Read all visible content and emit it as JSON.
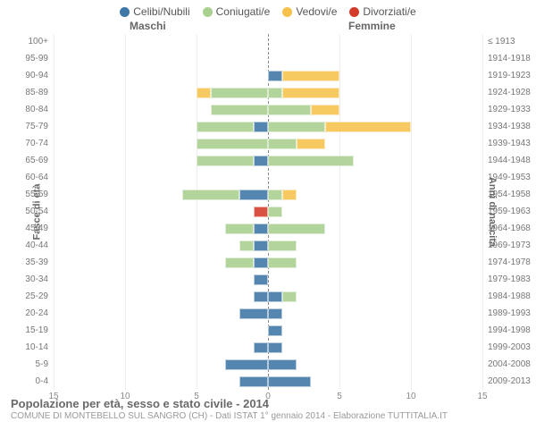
{
  "legend": {
    "items": [
      {
        "label": "Celibi/Nubili",
        "color": "#3e76a6"
      },
      {
        "label": "Coniugati/e",
        "color": "#a9d08e"
      },
      {
        "label": "Vedovi/e",
        "color": "#f7c24c"
      },
      {
        "label": "Divorziati/e",
        "color": "#d43a2a"
      }
    ]
  },
  "headers": {
    "male": "Maschi",
    "female": "Femmine"
  },
  "ylabels": {
    "left": "Fasce di età",
    "right": "Anni di nascita"
  },
  "chart": {
    "type": "population-pyramid",
    "xlim": [
      -15,
      15
    ],
    "xticks": [
      -15,
      -10,
      -5,
      0,
      5,
      10,
      15
    ],
    "xtick_labels": [
      "15",
      "10",
      "5",
      "0",
      "5",
      "10",
      "15"
    ],
    "background_color": "#ffffff",
    "grid_color": "#eeeeee",
    "zero_line_color": "#888888",
    "colors": {
      "celibi": "#3e76a6",
      "coniugati": "#a9d08e",
      "vedovi": "#f7c24c",
      "divorziati": "#d43a2a"
    },
    "rows": [
      {
        "age": "100+",
        "year": "≤ 1913",
        "male": {
          "cel": 0,
          "con": 0,
          "ved": 0,
          "div": 0
        },
        "female": {
          "cel": 0,
          "con": 0,
          "ved": 0,
          "div": 0
        }
      },
      {
        "age": "95-99",
        "year": "1914-1918",
        "male": {
          "cel": 0,
          "con": 0,
          "ved": 0,
          "div": 0
        },
        "female": {
          "cel": 0,
          "con": 0,
          "ved": 0,
          "div": 0
        }
      },
      {
        "age": "90-94",
        "year": "1919-1923",
        "male": {
          "cel": 0,
          "con": 0,
          "ved": 0,
          "div": 0
        },
        "female": {
          "cel": 1,
          "con": 0,
          "ved": 4,
          "div": 0
        }
      },
      {
        "age": "85-89",
        "year": "1924-1928",
        "male": {
          "cel": 0,
          "con": 4,
          "ved": 1,
          "div": 0
        },
        "female": {
          "cel": 0,
          "con": 1,
          "ved": 4,
          "div": 0
        }
      },
      {
        "age": "80-84",
        "year": "1929-1933",
        "male": {
          "cel": 0,
          "con": 4,
          "ved": 0,
          "div": 0
        },
        "female": {
          "cel": 0,
          "con": 3,
          "ved": 2,
          "div": 0
        }
      },
      {
        "age": "75-79",
        "year": "1934-1938",
        "male": {
          "cel": 1,
          "con": 4,
          "ved": 0,
          "div": 0
        },
        "female": {
          "cel": 0,
          "con": 4,
          "ved": 6,
          "div": 0
        }
      },
      {
        "age": "70-74",
        "year": "1939-1943",
        "male": {
          "cel": 0,
          "con": 5,
          "ved": 0,
          "div": 0
        },
        "female": {
          "cel": 0,
          "con": 2,
          "ved": 2,
          "div": 0
        }
      },
      {
        "age": "65-69",
        "year": "1944-1948",
        "male": {
          "cel": 1,
          "con": 4,
          "ved": 0,
          "div": 0
        },
        "female": {
          "cel": 0,
          "con": 6,
          "ved": 0,
          "div": 0
        }
      },
      {
        "age": "60-64",
        "year": "1949-1953",
        "male": {
          "cel": 0,
          "con": 0,
          "ved": 0,
          "div": 0
        },
        "female": {
          "cel": 0,
          "con": 0,
          "ved": 0,
          "div": 0
        }
      },
      {
        "age": "55-59",
        "year": "1954-1958",
        "male": {
          "cel": 2,
          "con": 4,
          "ved": 0,
          "div": 0
        },
        "female": {
          "cel": 0,
          "con": 1,
          "ved": 1,
          "div": 0
        }
      },
      {
        "age": "50-54",
        "year": "1959-1963",
        "male": {
          "cel": 0,
          "con": 0,
          "ved": 0,
          "div": 1
        },
        "female": {
          "cel": 0,
          "con": 1,
          "ved": 0,
          "div": 0
        }
      },
      {
        "age": "45-49",
        "year": "1964-1968",
        "male": {
          "cel": 1,
          "con": 2,
          "ved": 0,
          "div": 0
        },
        "female": {
          "cel": 0,
          "con": 4,
          "ved": 0,
          "div": 0
        }
      },
      {
        "age": "40-44",
        "year": "1969-1973",
        "male": {
          "cel": 1,
          "con": 1,
          "ved": 0,
          "div": 0
        },
        "female": {
          "cel": 0,
          "con": 2,
          "ved": 0,
          "div": 0
        }
      },
      {
        "age": "35-39",
        "year": "1974-1978",
        "male": {
          "cel": 1,
          "con": 2,
          "ved": 0,
          "div": 0
        },
        "female": {
          "cel": 0,
          "con": 2,
          "ved": 0,
          "div": 0
        }
      },
      {
        "age": "30-34",
        "year": "1979-1983",
        "male": {
          "cel": 1,
          "con": 0,
          "ved": 0,
          "div": 0
        },
        "female": {
          "cel": 0,
          "con": 0,
          "ved": 0,
          "div": 0
        }
      },
      {
        "age": "25-29",
        "year": "1984-1988",
        "male": {
          "cel": 1,
          "con": 0,
          "ved": 0,
          "div": 0
        },
        "female": {
          "cel": 1,
          "con": 1,
          "ved": 0,
          "div": 0
        }
      },
      {
        "age": "20-24",
        "year": "1989-1993",
        "male": {
          "cel": 2,
          "con": 0,
          "ved": 0,
          "div": 0
        },
        "female": {
          "cel": 1,
          "con": 0,
          "ved": 0,
          "div": 0
        }
      },
      {
        "age": "15-19",
        "year": "1994-1998",
        "male": {
          "cel": 0,
          "con": 0,
          "ved": 0,
          "div": 0
        },
        "female": {
          "cel": 1,
          "con": 0,
          "ved": 0,
          "div": 0
        }
      },
      {
        "age": "10-14",
        "year": "1999-2003",
        "male": {
          "cel": 1,
          "con": 0,
          "ved": 0,
          "div": 0
        },
        "female": {
          "cel": 1,
          "con": 0,
          "ved": 0,
          "div": 0
        }
      },
      {
        "age": "5-9",
        "year": "2004-2008",
        "male": {
          "cel": 3,
          "con": 0,
          "ved": 0,
          "div": 0
        },
        "female": {
          "cel": 2,
          "con": 0,
          "ved": 0,
          "div": 0
        }
      },
      {
        "age": "0-4",
        "year": "2009-2013",
        "male": {
          "cel": 2,
          "con": 0,
          "ved": 0,
          "div": 0
        },
        "female": {
          "cel": 3,
          "con": 0,
          "ved": 0,
          "div": 0
        }
      }
    ]
  },
  "footer": {
    "title": "Popolazione per età, sesso e stato civile - 2014",
    "sub": "COMUNE DI MONTEBELLO SUL SANGRO (CH) - Dati ISTAT 1° gennaio 2014 - Elaborazione TUTTITALIA.IT"
  }
}
